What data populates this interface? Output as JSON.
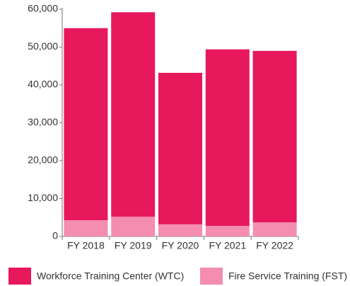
{
  "chart_data": {
    "type": "stacked_bar",
    "categories": [
      "FY 2018",
      "FY 2019",
      "FY 2020",
      "FY 2021",
      "FY 2022"
    ],
    "series": [
      {
        "name": "Workforce Training Center (WTC)",
        "color": "#e8185d",
        "values": [
          50700,
          54000,
          40000,
          46600,
          45300
        ]
      },
      {
        "name": "Fire Service Training (FST)",
        "color": "#f48db0",
        "values": [
          4300,
          5200,
          3200,
          2800,
          3700
        ]
      }
    ],
    "ylim": [
      0,
      60000
    ],
    "yticks": [
      0,
      {
        "value": 10000,
        "label": "10,000"
      },
      {
        "value": 20000,
        "label": "20,000"
      },
      {
        "value": 30000,
        "label": "30,000"
      },
      {
        "value": 40000,
        "label": "40,000"
      },
      {
        "value": 50000,
        "label": "50,000"
      },
      {
        "value": 60000,
        "label": "60,000"
      }
    ],
    "legend": "bottom"
  }
}
